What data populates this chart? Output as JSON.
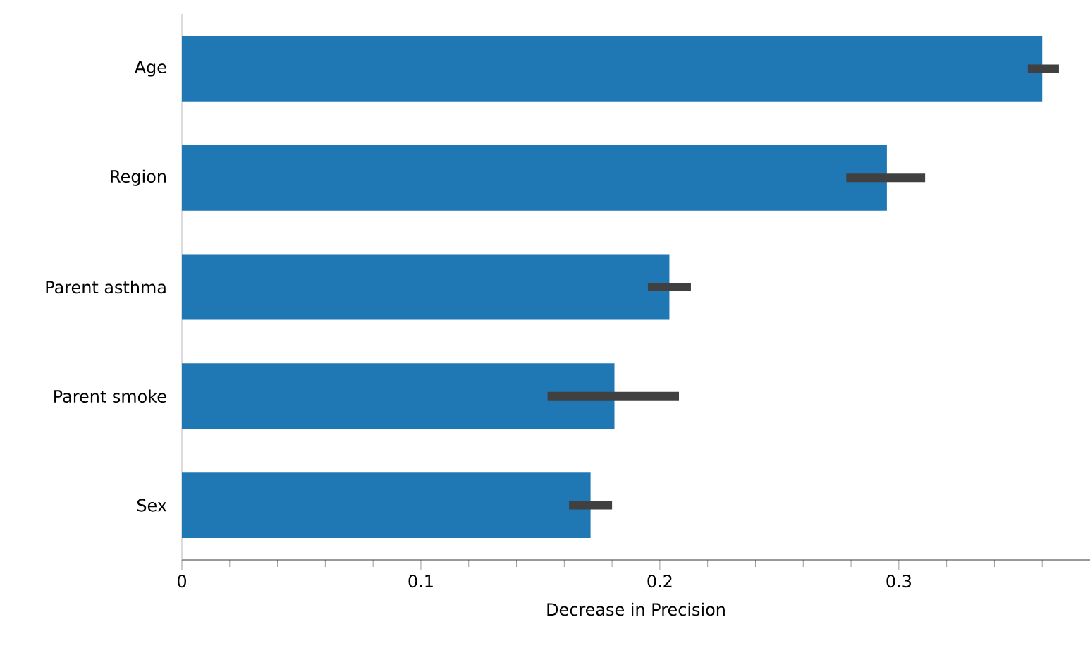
{
  "chart_data": {
    "type": "bar",
    "orientation": "horizontal",
    "xlabel": "Decrease in Precision",
    "categories": [
      "Age",
      "Region",
      "Parent asthma",
      "Parent smoke",
      "Sex"
    ],
    "values": [
      0.36,
      0.295,
      0.204,
      0.181,
      0.171
    ],
    "color": "#1f77b4",
    "errors": [
      [
        0.354,
        0.367
      ],
      [
        0.278,
        0.311
      ],
      [
        0.195,
        0.213
      ],
      [
        0.153,
        0.208
      ],
      [
        0.162,
        0.18
      ]
    ],
    "xlim": [
      0,
      0.38
    ],
    "xticks": [
      0,
      {
        "value": 0.02,
        "label": null
      },
      {
        "value": 0.04,
        "label": null
      },
      {
        "value": 0.06,
        "label": null
      },
      {
        "value": 0.08,
        "label": null
      },
      0.1,
      {
        "value": 0.12,
        "label": null
      },
      {
        "value": 0.14,
        "label": null
      },
      {
        "value": 0.16,
        "label": null
      },
      {
        "value": 0.18,
        "label": null
      },
      0.2,
      {
        "value": 0.22,
        "label": null
      },
      {
        "value": 0.24,
        "label": null
      },
      {
        "value": 0.26,
        "label": null
      },
      {
        "value": 0.28,
        "label": null
      },
      0.3,
      {
        "value": 0.32,
        "label": null
      },
      {
        "value": 0.34,
        "label": null
      },
      {
        "value": 0.36,
        "label": null
      }
    ],
    "grid": false
  }
}
